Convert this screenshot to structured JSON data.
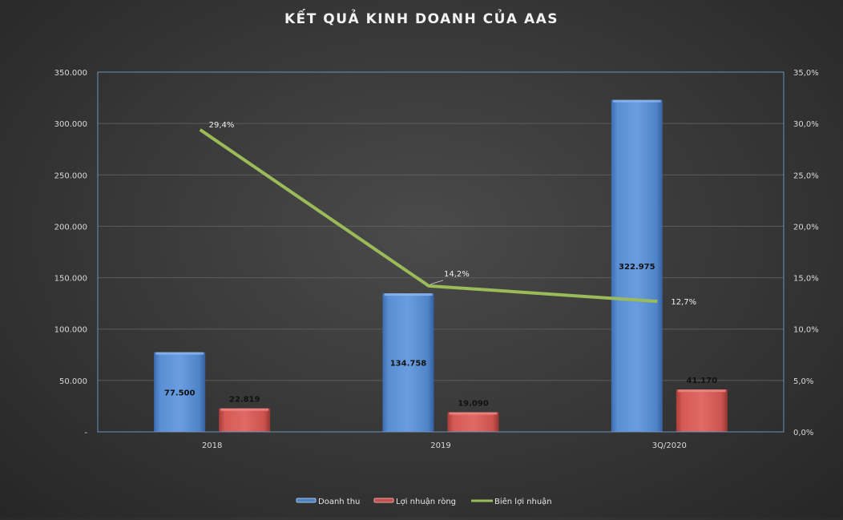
{
  "chart_data": {
    "type": "bar+line",
    "title": "KẾT QUẢ KINH DOANH CỦA AAS",
    "categories": [
      "2018",
      "2019",
      "3Q/2020"
    ],
    "series": [
      {
        "name": "Doanh thu",
        "type": "bar",
        "axis": "left",
        "color": "#4f81bd",
        "values": [
          77500,
          134758,
          322975
        ],
        "labels": [
          "77.500",
          "134.758",
          "322.975"
        ]
      },
      {
        "name": "Lợi nhuận ròng",
        "type": "bar",
        "axis": "left",
        "color": "#c0504d",
        "values": [
          22819,
          19090,
          41170
        ],
        "labels": [
          "22.819",
          "19.090",
          "41.170"
        ]
      },
      {
        "name": "Biên lợi nhuận",
        "type": "line",
        "axis": "right",
        "color": "#9bbb59",
        "values": [
          29.4,
          14.2,
          12.7
        ],
        "labels": [
          "29,4%",
          "14,2%",
          "12,7%"
        ]
      }
    ],
    "y_left": {
      "min": 0,
      "max": 350000,
      "step": 50000,
      "ticks": [
        "-",
        "50.000",
        "100.000",
        "150.000",
        "200.000",
        "250.000",
        "300.000",
        "350.000"
      ]
    },
    "y_right": {
      "min": 0,
      "max": 35,
      "step": 5,
      "ticks": [
        "0,0%",
        "5,0%",
        "10,0%",
        "15,0%",
        "20,0%",
        "25,0%",
        "30,0%",
        "35,0%"
      ]
    },
    "xlabel": "",
    "ylabel": "",
    "grid": true,
    "legend_position": "bottom"
  }
}
